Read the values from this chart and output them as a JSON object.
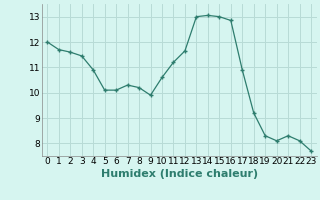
{
  "x": [
    0,
    1,
    2,
    3,
    4,
    5,
    6,
    7,
    8,
    9,
    10,
    11,
    12,
    13,
    14,
    15,
    16,
    17,
    18,
    19,
    20,
    21,
    22,
    23
  ],
  "y": [
    12.0,
    11.7,
    11.6,
    11.45,
    10.9,
    10.1,
    10.1,
    10.3,
    10.2,
    9.9,
    10.6,
    11.2,
    11.65,
    13.0,
    13.05,
    13.0,
    12.85,
    10.9,
    9.2,
    8.3,
    8.1,
    8.3,
    8.1,
    7.7
  ],
  "line_color": "#2e7d6e",
  "bg_color": "#d6f5f0",
  "grid_color": "#b8dbd6",
  "xlabel": "Humidex (Indice chaleur)",
  "xlabel_fontsize": 8,
  "tick_fontsize": 6.5,
  "xlim": [
    -0.5,
    23.5
  ],
  "ylim": [
    7.5,
    13.5
  ],
  "yticks": [
    8,
    9,
    10,
    11,
    12,
    13
  ],
  "xticks": [
    0,
    1,
    2,
    3,
    4,
    5,
    6,
    7,
    8,
    9,
    10,
    11,
    12,
    13,
    14,
    15,
    16,
    17,
    18,
    19,
    20,
    21,
    22,
    23
  ]
}
